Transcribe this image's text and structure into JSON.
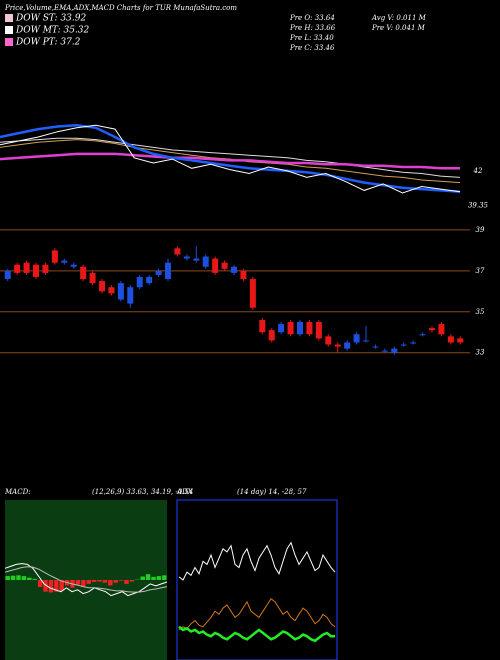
{
  "header": {
    "title": "Price,Volume,EMA,ADX,MACD Charts for TUR MunafaSutra.com",
    "legend": [
      {
        "name": "DOW ST: 33.92",
        "color": "#f4c2d0"
      },
      {
        "name": "DOW MT: 35.32",
        "color": "#ffffff"
      },
      {
        "name": "DOW PT: 37.2",
        "color": "#ff66cc"
      }
    ],
    "info": [
      "Pre O: 33.64",
      "Pre H: 33.66",
      "Pre L: 33.40",
      "Pre C: 33.46",
      "Avg V: 0.011 M",
      "Pre V: 0.041 M"
    ]
  },
  "chart_data": [
    {
      "type": "line",
      "ylim": [
        39,
        50.5
      ],
      "yticks": [
        42,
        39.35
      ],
      "series": [
        {
          "color": "#dddddd",
          "values": [
            44.2,
            44.3,
            44.4,
            44.5,
            44.5,
            44.4,
            44.2,
            44.0,
            43.8,
            43.6,
            43.5,
            43.4,
            43.3,
            43.2,
            43.1,
            43.0,
            42.8,
            42.7,
            42.5,
            42.3,
            42.1,
            41.9,
            41.8,
            41.6,
            41.5
          ]
        },
        {
          "color": "#d2a050",
          "values": [
            43.8,
            44.0,
            44.2,
            44.3,
            44.4,
            44.3,
            44.1,
            43.8,
            43.6,
            43.4,
            43.2,
            43.0,
            42.9,
            42.7,
            42.6,
            42.5,
            42.3,
            42.2,
            42.0,
            41.8,
            41.6,
            41.5,
            41.3,
            41.2,
            41.1
          ]
        },
        {
          "color": "#e040d0",
          "values": [
            42.9,
            43.0,
            43.1,
            43.2,
            43.3,
            43.3,
            43.3,
            43.2,
            43.1,
            43.0,
            43.0,
            42.9,
            42.8,
            42.8,
            42.7,
            42.6,
            42.6,
            42.5,
            42.5,
            42.4,
            42.4,
            42.3,
            42.3,
            42.2,
            42.2
          ]
        },
        {
          "color": "#1f5fff",
          "values": [
            44.6,
            44.9,
            45.2,
            45.4,
            45.5,
            45.3,
            44.6,
            43.8,
            43.3,
            43.0,
            42.8,
            42.6,
            42.4,
            42.2,
            42.1,
            42.0,
            41.9,
            41.7,
            41.4,
            41.1,
            40.9,
            40.7,
            40.6,
            40.5,
            40.4
          ]
        },
        {
          "color": "#ffffff",
          "values": [
            44.0,
            44.3,
            44.6,
            45.0,
            45.3,
            45.5,
            45.2,
            43.0,
            42.6,
            42.9,
            42.2,
            42.5,
            42.1,
            41.8,
            42.3,
            42.0,
            41.5,
            41.8,
            41.2,
            40.5,
            41.0,
            40.3,
            40.8,
            40.6,
            40.4
          ]
        }
      ]
    },
    {
      "type": "candlestick",
      "ylim": [
        32.4,
        39.24
      ],
      "yticks": [
        39,
        37,
        35,
        33
      ],
      "grid": true,
      "up_color": "#1e50e0",
      "down_color": "#e81818",
      "open": [
        36.6,
        37.3,
        37.4,
        37.3,
        37.3,
        38.0,
        37.4,
        37.2,
        37.2,
        36.9,
        36.5,
        36.2,
        35.6,
        35.4,
        36.2,
        36.4,
        36.8,
        36.6,
        38.1,
        37.6,
        37.5,
        37.2,
        37.6,
        37.4,
        36.9,
        37.0,
        36.6,
        34.6,
        34.1,
        34.0,
        34.5,
        33.9,
        34.5,
        34.5,
        33.8,
        33.4,
        33.2,
        33.5,
        33.6,
        33.3,
        33.1,
        33.0,
        33.4,
        33.5,
        33.9,
        34.2,
        34.4,
        33.8,
        33.7
      ],
      "high": [
        37.1,
        37.4,
        37.5,
        37.4,
        37.4,
        38.1,
        37.6,
        37.4,
        37.3,
        37.0,
        36.6,
        36.3,
        36.5,
        36.3,
        36.8,
        36.8,
        37.1,
        37.6,
        38.2,
        37.8,
        38.2,
        37.8,
        37.7,
        37.5,
        37.3,
        37.1,
        36.7,
        34.7,
        34.2,
        34.5,
        34.6,
        34.6,
        34.6,
        34.6,
        33.9,
        33.5,
        33.6,
        34.0,
        34.3,
        33.4,
        33.2,
        33.3,
        33.5,
        33.6,
        34.0,
        34.3,
        34.5,
        33.9,
        33.8
      ],
      "low": [
        36.5,
        36.8,
        36.8,
        36.6,
        36.8,
        37.3,
        37.3,
        37.1,
        36.5,
        36.3,
        35.9,
        35.8,
        35.5,
        35.2,
        36.1,
        36.3,
        36.7,
        36.5,
        37.7,
        37.5,
        37.4,
        37.1,
        36.8,
        37.0,
        36.8,
        36.5,
        35.1,
        33.9,
        33.5,
        33.9,
        33.8,
        33.8,
        33.8,
        33.6,
        33.3,
        33.0,
        33.1,
        33.4,
        33.5,
        33.2,
        33.0,
        32.9,
        33.3,
        33.4,
        33.8,
        34.0,
        33.8,
        33.4,
        33.4
      ],
      "close": [
        37.0,
        36.9,
        36.9,
        36.7,
        36.9,
        37.4,
        37.5,
        37.3,
        36.6,
        36.4,
        36.0,
        35.9,
        36.4,
        36.2,
        36.7,
        36.7,
        37.0,
        37.4,
        37.8,
        37.7,
        37.6,
        37.7,
        36.9,
        37.1,
        37.2,
        36.6,
        35.2,
        34.0,
        33.6,
        34.4,
        33.9,
        34.5,
        33.9,
        33.7,
        33.4,
        33.3,
        33.5,
        33.9,
        33.6,
        33.3,
        33.1,
        33.2,
        33.4,
        33.5,
        33.9,
        34.1,
        33.9,
        33.5,
        33.5
      ]
    },
    {
      "type": "macd",
      "title": "MACD:",
      "subtitle": "(12,26,9) 33.63, 34.19, -0.54",
      "ylim": [
        -2,
        2
      ],
      "up_color": "#22cc22",
      "down_color": "#ee2222",
      "series": [
        {
          "color": "#ffffff",
          "values": [
            0.3,
            0.35,
            0.4,
            0.42,
            0.4,
            0.3,
            0.1,
            -0.1,
            -0.2,
            -0.25,
            -0.3,
            -0.2,
            -0.3,
            -0.25,
            -0.35,
            -0.3,
            -0.2,
            -0.25,
            -0.3,
            -0.4,
            -0.35,
            -0.3,
            -0.4,
            -0.35,
            -0.3,
            -0.2,
            -0.1,
            -0.15,
            -0.1,
            -0.05
          ]
        },
        {
          "color": "#bbbbbb",
          "values": [
            0.2,
            0.24,
            0.28,
            0.32,
            0.34,
            0.33,
            0.28,
            0.2,
            0.12,
            0.05,
            -0.02,
            -0.06,
            -0.1,
            -0.13,
            -0.17,
            -0.2,
            -0.2,
            -0.21,
            -0.23,
            -0.26,
            -0.28,
            -0.28,
            -0.3,
            -0.31,
            -0.31,
            -0.29,
            -0.25,
            -0.23,
            -0.2,
            -0.17
          ]
        }
      ],
      "histogram": [
        0.1,
        0.11,
        0.12,
        0.1,
        0.06,
        0.03,
        -0.18,
        -0.3,
        -0.32,
        -0.3,
        -0.28,
        -0.14,
        -0.2,
        -0.12,
        -0.18,
        -0.1,
        -0.05,
        -0.04,
        -0.07,
        -0.14,
        -0.07,
        -0.02,
        -0.1,
        -0.04,
        0.01,
        0.09,
        0.15,
        0.08,
        0.1,
        0.12
      ]
    },
    {
      "type": "adx",
      "title": "ADX",
      "subtitle": "(14 day) 14, -28, 57",
      "ylim": [
        0,
        100
      ],
      "series": [
        {
          "color": "#ffffff",
          "values": [
            52,
            50,
            55,
            53,
            58,
            54,
            62,
            60,
            66,
            58,
            64,
            70,
            68,
            72,
            60,
            58,
            66,
            70,
            62,
            56,
            64,
            68,
            72,
            66,
            58,
            54,
            62,
            70,
            74,
            66,
            60,
            64,
            68,
            62,
            56,
            58,
            66,
            62,
            58,
            55
          ]
        },
        {
          "color": "#d07818",
          "values": [
            18,
            20,
            19,
            22,
            24,
            21,
            20,
            23,
            26,
            30,
            28,
            32,
            34,
            30,
            26,
            28,
            32,
            36,
            30,
            28,
            26,
            30,
            34,
            38,
            36,
            32,
            28,
            30,
            26,
            24,
            28,
            32,
            30,
            26,
            22,
            24,
            28,
            26,
            22,
            20
          ]
        },
        {
          "color": "#22ee22",
          "values": [
            20,
            18,
            19,
            17,
            18,
            16,
            17,
            15,
            14,
            16,
            15,
            13,
            12,
            14,
            16,
            15,
            13,
            12,
            14,
            16,
            18,
            16,
            14,
            12,
            13,
            15,
            17,
            16,
            14,
            12,
            13,
            15,
            14,
            12,
            11,
            13,
            15,
            16,
            14,
            14
          ]
        }
      ]
    }
  ]
}
